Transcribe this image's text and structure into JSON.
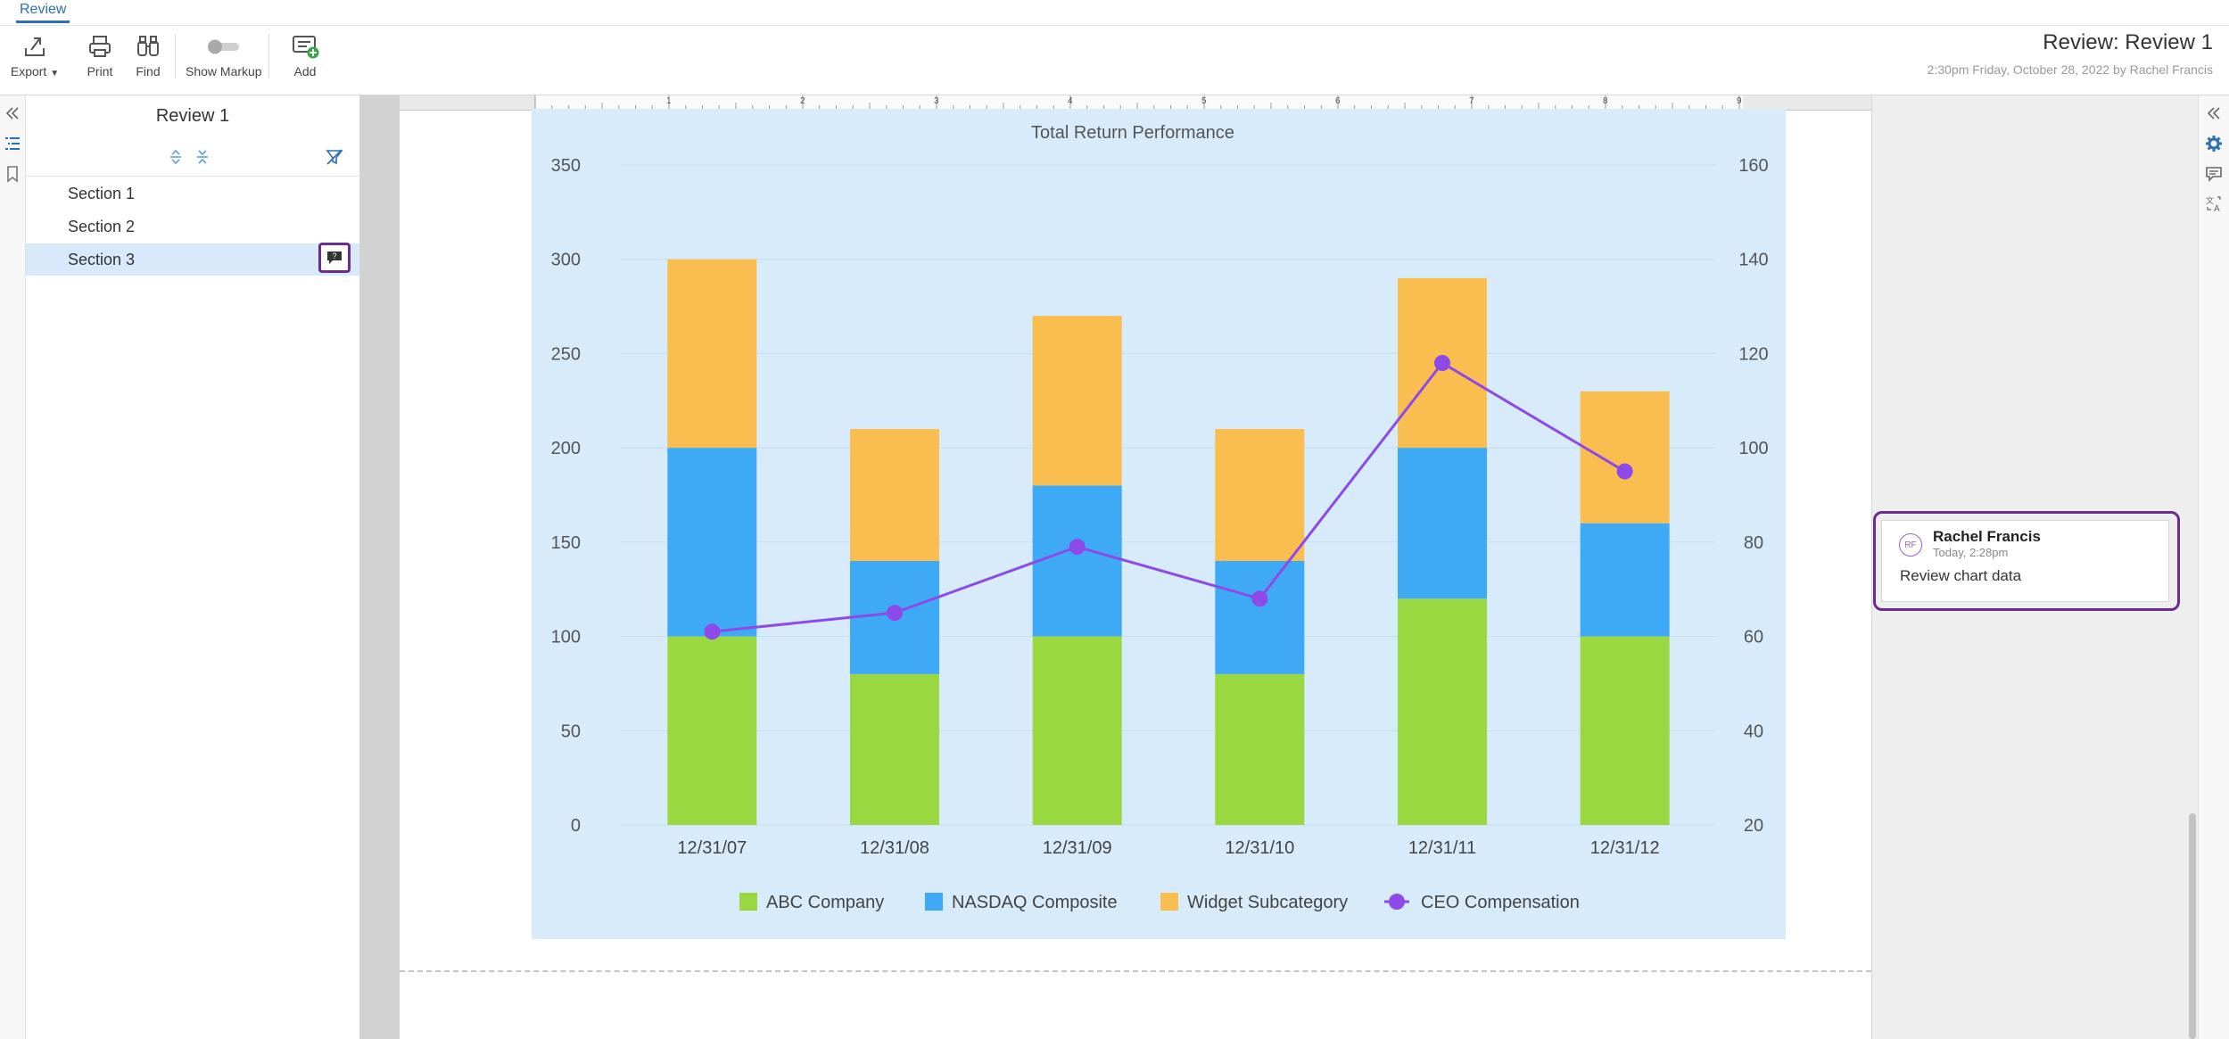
{
  "toolbar": {
    "tab": "Review",
    "export_label": "Export",
    "print_label": "Print",
    "find_label": "Find",
    "markup_label": "Show Markup",
    "add_label": "Add"
  },
  "header": {
    "title": "Review: Review 1",
    "subtitle": "2:30pm Friday, October 28, 2022 by Rachel Francis"
  },
  "nav": {
    "title": "Review 1",
    "items": [
      {
        "label": "Section 1"
      },
      {
        "label": "Section 2"
      },
      {
        "label": "Section 3"
      }
    ]
  },
  "ruler": {
    "labels": [
      "1",
      "2",
      "3",
      "4",
      "5",
      "6",
      "7",
      "8",
      "9"
    ]
  },
  "comment": {
    "initials": "RF",
    "author": "Rachel Francis",
    "time": "Today, 2:28pm",
    "text": "Review chart data"
  },
  "colors": {
    "accent": "#2d6fb5",
    "highlight": "#6a2c8e",
    "abc": "#99d840",
    "nasdaq": "#3ea9f5",
    "widget": "#fabe50",
    "ceo": "#8d4ae8"
  },
  "chart_data": {
    "type": "bar",
    "title": "Total Return Performance",
    "categories": [
      "12/31/07",
      "12/31/08",
      "12/31/09",
      "12/31/10",
      "12/31/11",
      "12/31/12"
    ],
    "stacked": true,
    "series": [
      {
        "name": "ABC Company",
        "values": [
          100,
          80,
          100,
          80,
          120,
          100
        ]
      },
      {
        "name": "NASDAQ Composite",
        "values": [
          100,
          60,
          80,
          60,
          80,
          60
        ]
      },
      {
        "name": "Widget Subcategory",
        "values": [
          100,
          70,
          90,
          70,
          90,
          70
        ]
      }
    ],
    "line_series": {
      "name": "CEO Compensation",
      "axis": "right",
      "values": [
        61,
        65,
        79,
        68,
        118,
        95
      ]
    },
    "ylim": [
      0,
      350
    ],
    "yticks": [
      0,
      50,
      100,
      150,
      200,
      250,
      300,
      350
    ],
    "y2lim": [
      20,
      160
    ],
    "y2ticks": [
      20,
      40,
      60,
      80,
      100,
      120,
      140,
      160
    ],
    "legend": "bottom",
    "grid": true
  }
}
